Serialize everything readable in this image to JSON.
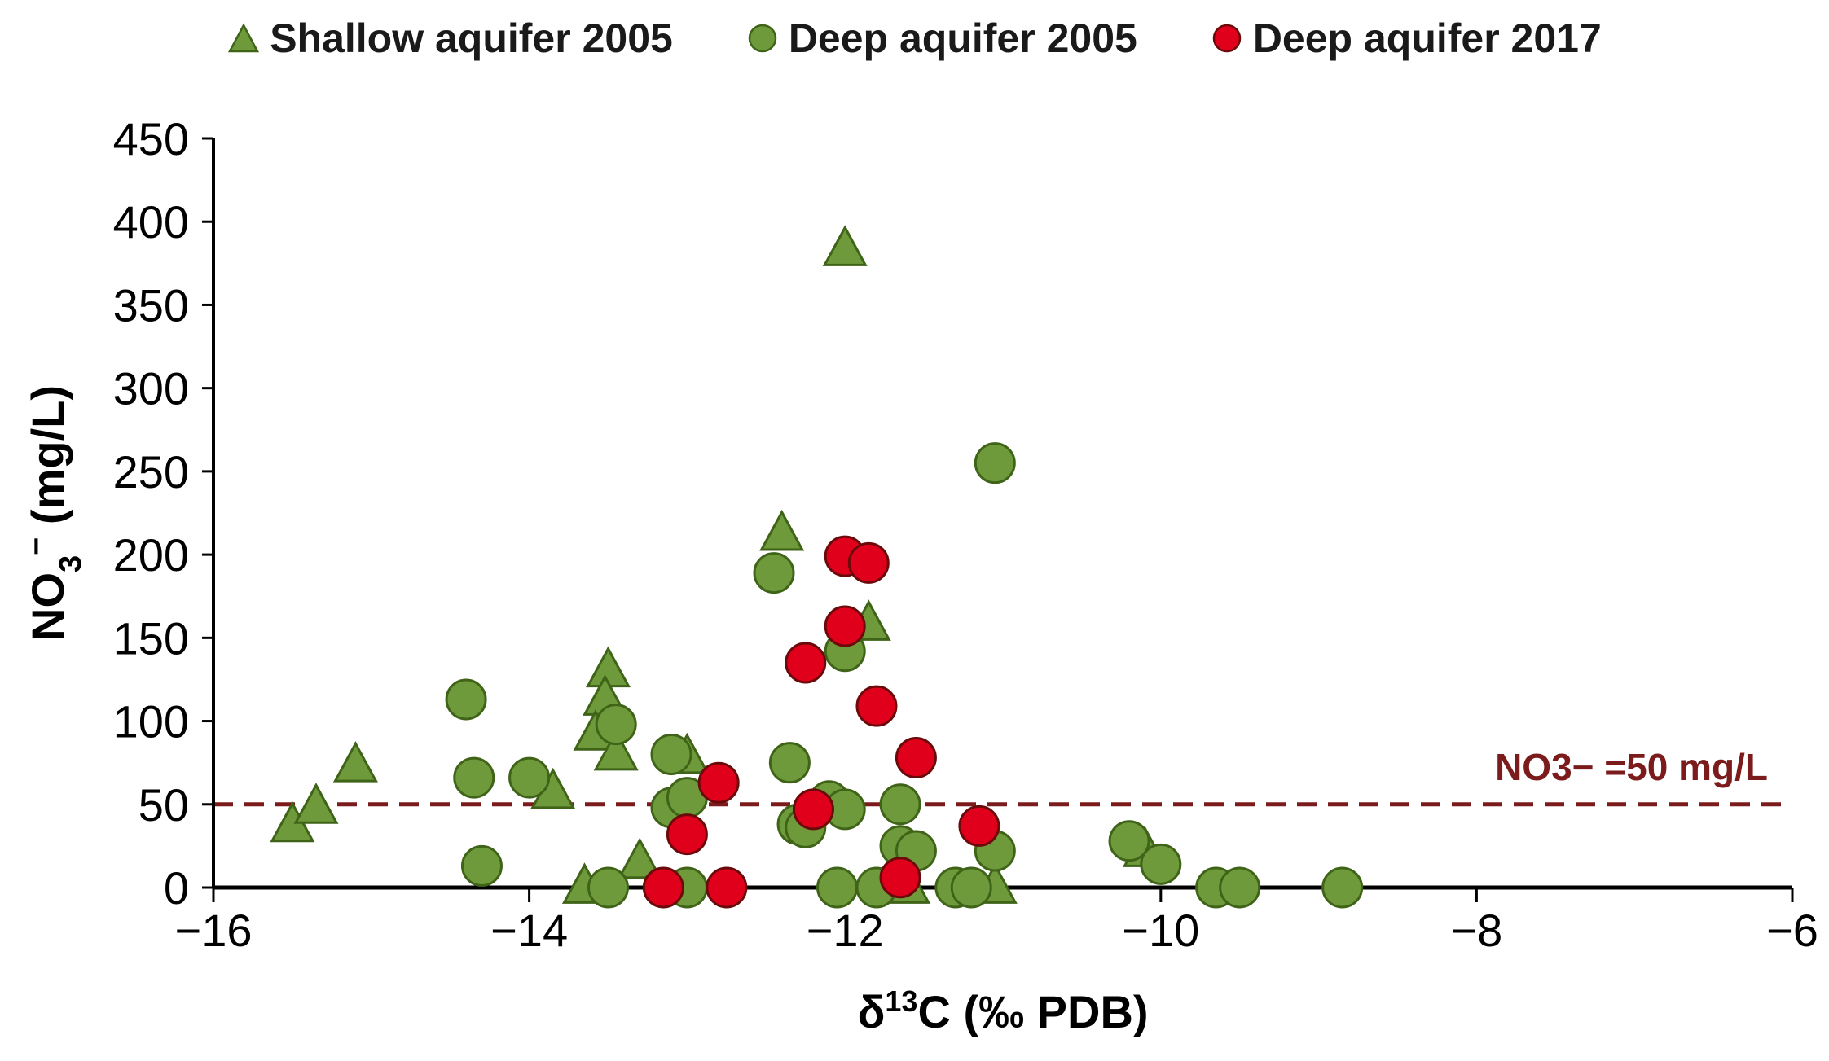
{
  "legend": {
    "items": [
      {
        "label": "Shallow aquifer 2005",
        "marker": "triangle-icon"
      },
      {
        "label": "Deep aquifer 2005",
        "marker": "circle-icon"
      },
      {
        "label": "Deep aquifer 2017",
        "marker": "circle-icon"
      }
    ]
  },
  "colors": {
    "green_fill": "#6f9a3c",
    "green_stroke": "#3f6418",
    "red_fill": "#e0001b",
    "red_stroke": "#6b0a0a",
    "threshold_line": "#7b1b1b",
    "axis": "#000000"
  },
  "chart_data": {
    "type": "scatter",
    "xlabel": "δ13C (‰ PDB)",
    "ylabel": "NO3− (mg/L)",
    "xlim": [
      -16,
      -6
    ],
    "ylim": [
      0,
      450
    ],
    "xticks": [
      -16,
      -14,
      -12,
      -10,
      -8,
      -6
    ],
    "xtick_labels": [
      "−16",
      "−14",
      "−12",
      "−10",
      "−8",
      "−6"
    ],
    "yticks": [
      0,
      50,
      100,
      150,
      200,
      250,
      300,
      350,
      400,
      450
    ],
    "ytick_labels": [
      "0",
      "50",
      "100",
      "150",
      "200",
      "250",
      "300",
      "350",
      "400",
      "450"
    ],
    "legend_position": "top",
    "grid": false,
    "reference_line": {
      "y": 50,
      "label": "NO3− =50 mg/L"
    },
    "series": [
      {
        "name": "Shallow aquifer 2005",
        "marker": "triangle",
        "points": [
          [
            -15.5,
            37
          ],
          [
            -15.35,
            48
          ],
          [
            -15.1,
            73
          ],
          [
            -13.85,
            57
          ],
          [
            -13.5,
            130
          ],
          [
            -13.52,
            113
          ],
          [
            -13.58,
            92
          ],
          [
            -13.45,
            80
          ],
          [
            -13.3,
            15
          ],
          [
            -13.65,
            0
          ],
          [
            -13.0,
            78
          ],
          [
            -12.4,
            212
          ],
          [
            -12.0,
            383
          ],
          [
            -11.85,
            158
          ],
          [
            -11.6,
            0
          ],
          [
            -11.05,
            0
          ],
          [
            -10.1,
            22
          ]
        ]
      },
      {
        "name": "Deep aquifer 2005",
        "marker": "circle",
        "points": [
          [
            -14.4,
            113
          ],
          [
            -14.35,
            66
          ],
          [
            -14.3,
            13
          ],
          [
            -14.0,
            66
          ],
          [
            -13.45,
            98
          ],
          [
            -13.5,
            0
          ],
          [
            -13.1,
            80
          ],
          [
            -13.1,
            48
          ],
          [
            -13.0,
            54
          ],
          [
            -13.0,
            0
          ],
          [
            -12.45,
            189
          ],
          [
            -12.35,
            75
          ],
          [
            -12.3,
            38
          ],
          [
            -12.25,
            36
          ],
          [
            -12.1,
            52
          ],
          [
            -12.0,
            47
          ],
          [
            -12.0,
            142
          ],
          [
            -12.05,
            0
          ],
          [
            -11.8,
            0
          ],
          [
            -11.65,
            50
          ],
          [
            -11.65,
            25
          ],
          [
            -11.55,
            22
          ],
          [
            -11.3,
            0
          ],
          [
            -11.2,
            0
          ],
          [
            -11.05,
            255
          ],
          [
            -11.05,
            22
          ],
          [
            -10.2,
            28
          ],
          [
            -10.0,
            14
          ],
          [
            -9.65,
            0
          ],
          [
            -9.5,
            0
          ],
          [
            -8.85,
            0
          ]
        ]
      },
      {
        "name": "Deep aquifer 2017",
        "marker": "circle",
        "points": [
          [
            -13.15,
            0
          ],
          [
            -13.0,
            32
          ],
          [
            -12.8,
            63
          ],
          [
            -12.75,
            0
          ],
          [
            -12.25,
            135
          ],
          [
            -12.2,
            47
          ],
          [
            -12.0,
            199
          ],
          [
            -12.0,
            157
          ],
          [
            -11.85,
            195
          ],
          [
            -11.8,
            109
          ],
          [
            -11.65,
            6
          ],
          [
            -11.55,
            78
          ],
          [
            -11.15,
            37
          ]
        ]
      }
    ]
  }
}
